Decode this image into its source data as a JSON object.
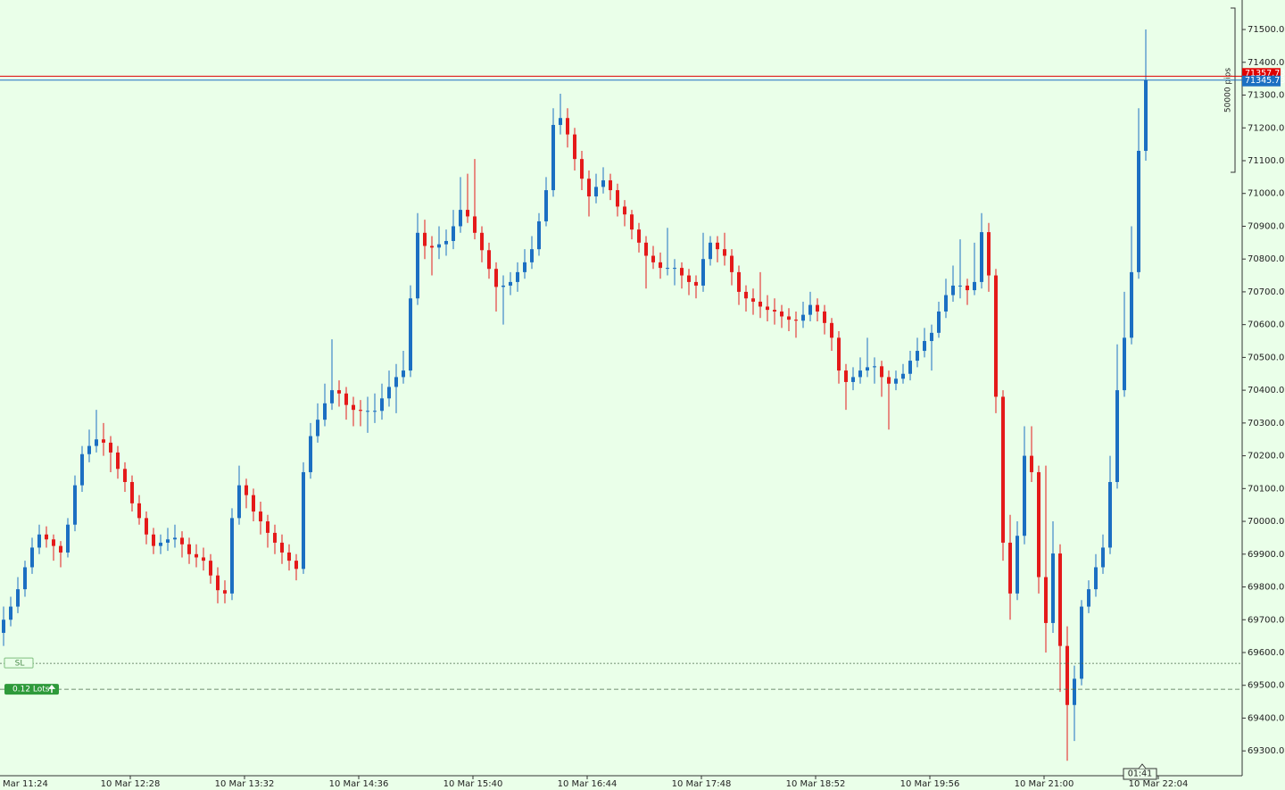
{
  "chart_data": {
    "type": "candlestick",
    "up_color": "#1c6fc2",
    "down_color": "#e41a1a",
    "ylim": [
      69227,
      71590
    ],
    "yticks": [
      {
        "value": 69300,
        "label": "69300.00"
      },
      {
        "value": 69400,
        "label": "69400.00"
      },
      {
        "value": 69500,
        "label": "69500.00"
      },
      {
        "value": 69600,
        "label": "69600.00"
      },
      {
        "value": 69700,
        "label": "69700.00"
      },
      {
        "value": 69800,
        "label": "69800.00"
      },
      {
        "value": 69900,
        "label": "69900.00"
      },
      {
        "value": 70000,
        "label": "70000.00"
      },
      {
        "value": 70100,
        "label": "70100.00"
      },
      {
        "value": 70200,
        "label": "70200.00"
      },
      {
        "value": 70300,
        "label": "70300.00"
      },
      {
        "value": 70400,
        "label": "70400.00"
      },
      {
        "value": 70500,
        "label": "70500.00"
      },
      {
        "value": 70600,
        "label": "70600.00"
      },
      {
        "value": 70700,
        "label": "70700.00"
      },
      {
        "value": 70800,
        "label": "70800.00"
      },
      {
        "value": 70900,
        "label": "70900.00"
      },
      {
        "value": 71000,
        "label": "71000.00"
      },
      {
        "value": 71100,
        "label": "71100.00"
      },
      {
        "value": 71200,
        "label": "71200.00"
      },
      {
        "value": 71300,
        "label": "71300.00"
      },
      {
        "value": 71400,
        "label": "71400.00"
      },
      {
        "value": 71500,
        "label": "71500.00"
      }
    ],
    "xticks": [
      "Mar 11:24",
      "10 Mar 12:28",
      "10 Mar 13:32",
      "10 Mar 14:36",
      "10 Mar 15:40",
      "10 Mar 16:44",
      "10 Mar 17:48",
      "10 Mar 18:52",
      "10 Mar 19:56",
      "10 Mar 21:00",
      "10 Mar 22:04"
    ],
    "ohlc": [
      [
        69660,
        69740,
        69620,
        69700
      ],
      [
        69700,
        69770,
        69680,
        69740
      ],
      [
        69740,
        69830,
        69720,
        69793
      ],
      [
        69793,
        69880,
        69770,
        69860
      ],
      [
        69860,
        69950,
        69840,
        69920
      ],
      [
        69920,
        69990,
        69900,
        69960
      ],
      [
        69960,
        69985,
        69920,
        69945
      ],
      [
        69945,
        69960,
        69880,
        69925
      ],
      [
        69925,
        69940,
        69860,
        69905
      ],
      [
        69905,
        70010,
        69890,
        69990
      ],
      [
        69990,
        70140,
        69970,
        70110
      ],
      [
        70110,
        70230,
        70090,
        70205
      ],
      [
        70205,
        70280,
        70180,
        70230
      ],
      [
        70230,
        70340,
        70210,
        70250
      ],
      [
        70250,
        70300,
        70200,
        70240
      ],
      [
        70240,
        70260,
        70150,
        70210
      ],
      [
        70210,
        70230,
        70130,
        70160
      ],
      [
        70160,
        70180,
        70090,
        70120
      ],
      [
        70120,
        70140,
        70030,
        70055
      ],
      [
        70055,
        70080,
        69990,
        70010
      ],
      [
        70010,
        70030,
        69930,
        69960
      ],
      [
        69960,
        69980,
        69900,
        69925
      ],
      [
        69925,
        69960,
        69900,
        69935
      ],
      [
        69935,
        69980,
        69910,
        69945
      ],
      [
        69945,
        69990,
        69920,
        69950
      ],
      [
        69950,
        69970,
        69890,
        69930
      ],
      [
        69930,
        69950,
        69870,
        69900
      ],
      [
        69900,
        69930,
        69860,
        69890
      ],
      [
        69890,
        69920,
        69850,
        69880
      ],
      [
        69880,
        69900,
        69810,
        69835
      ],
      [
        69835,
        69860,
        69750,
        69790
      ],
      [
        69790,
        69820,
        69750,
        69780
      ],
      [
        69780,
        70040,
        69760,
        70010
      ],
      [
        70010,
        70170,
        69990,
        70110
      ],
      [
        70110,
        70130,
        70040,
        70080
      ],
      [
        70080,
        70100,
        70000,
        70030
      ],
      [
        70030,
        70060,
        69960,
        70000
      ],
      [
        70000,
        70020,
        69920,
        69965
      ],
      [
        69965,
        69990,
        69900,
        69935
      ],
      [
        69935,
        69960,
        69870,
        69905
      ],
      [
        69905,
        69930,
        69850,
        69880
      ],
      [
        69880,
        69900,
        69820,
        69855
      ],
      [
        69855,
        70180,
        69840,
        70150
      ],
      [
        70150,
        70300,
        70130,
        70260
      ],
      [
        70260,
        70360,
        70240,
        70310
      ],
      [
        70310,
        70420,
        70290,
        70360
      ],
      [
        70360,
        70555,
        70340,
        70400
      ],
      [
        70400,
        70430,
        70350,
        70390
      ],
      [
        70390,
        70410,
        70310,
        70355
      ],
      [
        70355,
        70380,
        70290,
        70340
      ],
      [
        70340,
        70370,
        70290,
        70337
      ],
      [
        70337,
        70380,
        70270,
        70337
      ],
      [
        70337,
        70390,
        70300,
        70337
      ],
      [
        70337,
        70420,
        70310,
        70375
      ],
      [
        70375,
        70460,
        70350,
        70410
      ],
      [
        70410,
        70480,
        70330,
        70440
      ],
      [
        70440,
        70520,
        70420,
        70460
      ],
      [
        70460,
        70720,
        70440,
        70680
      ],
      [
        70680,
        70940,
        70660,
        70880
      ],
      [
        70880,
        70920,
        70800,
        70840
      ],
      [
        70840,
        70870,
        70750,
        70835
      ],
      [
        70835,
        70900,
        70800,
        70845
      ],
      [
        70845,
        70890,
        70810,
        70855
      ],
      [
        70855,
        70950,
        70830,
        70900
      ],
      [
        70900,
        71050,
        70880,
        70950
      ],
      [
        70950,
        71060,
        70910,
        70930
      ],
      [
        70930,
        71105,
        70860,
        70880
      ],
      [
        70880,
        70900,
        70790,
        70827
      ],
      [
        70827,
        70850,
        70740,
        70770
      ],
      [
        70770,
        70790,
        70640,
        70715
      ],
      [
        70715,
        70750,
        70600,
        70719
      ],
      [
        70719,
        70760,
        70690,
        70730
      ],
      [
        70730,
        70790,
        70700,
        70760
      ],
      [
        70760,
        70830,
        70740,
        70790
      ],
      [
        70790,
        70870,
        70770,
        70830
      ],
      [
        70830,
        70940,
        70810,
        70915
      ],
      [
        70915,
        71050,
        70900,
        71010
      ],
      [
        71010,
        71260,
        70990,
        71209
      ],
      [
        71209,
        71304,
        71180,
        71230
      ],
      [
        71230,
        71260,
        71140,
        71180
      ],
      [
        71180,
        71200,
        71070,
        71105
      ],
      [
        71105,
        71130,
        71010,
        71045
      ],
      [
        71045,
        71070,
        70930,
        70991
      ],
      [
        70991,
        71060,
        70970,
        71020
      ],
      [
        71020,
        71080,
        71000,
        71040
      ],
      [
        71040,
        71060,
        70980,
        71010
      ],
      [
        71010,
        71030,
        70930,
        70960
      ],
      [
        70960,
        70980,
        70900,
        70936
      ],
      [
        70936,
        70950,
        70860,
        70890
      ],
      [
        70890,
        70910,
        70820,
        70850
      ],
      [
        70850,
        70870,
        70710,
        70810
      ],
      [
        70810,
        70840,
        70770,
        70790
      ],
      [
        70790,
        70820,
        70740,
        70773
      ],
      [
        70773,
        70895,
        70750,
        70773
      ],
      [
        70773,
        70800,
        70720,
        70773
      ],
      [
        70773,
        70790,
        70710,
        70750
      ],
      [
        70750,
        70770,
        70690,
        70730
      ],
      [
        70730,
        70750,
        70680,
        70719
      ],
      [
        70719,
        70880,
        70700,
        70800
      ],
      [
        70800,
        70870,
        70780,
        70850
      ],
      [
        70850,
        70870,
        70790,
        70830
      ],
      [
        70830,
        70880,
        70780,
        70810
      ],
      [
        70810,
        70830,
        70720,
        70760
      ],
      [
        70760,
        70780,
        70660,
        70700
      ],
      [
        70700,
        70720,
        70640,
        70680
      ],
      [
        70680,
        70710,
        70630,
        70670
      ],
      [
        70670,
        70760,
        70620,
        70655
      ],
      [
        70655,
        70690,
        70610,
        70645
      ],
      [
        70645,
        70680,
        70600,
        70640
      ],
      [
        70640,
        70660,
        70590,
        70625
      ],
      [
        70625,
        70650,
        70580,
        70615
      ],
      [
        70615,
        70640,
        70560,
        70612
      ],
      [
        70612,
        70670,
        70590,
        70630
      ],
      [
        70630,
        70700,
        70610,
        70660
      ],
      [
        70660,
        70680,
        70610,
        70640
      ],
      [
        70640,
        70660,
        70570,
        70605
      ],
      [
        70605,
        70620,
        70520,
        70560
      ],
      [
        70560,
        70580,
        70420,
        70460
      ],
      [
        70460,
        70480,
        70340,
        70425
      ],
      [
        70425,
        70470,
        70400,
        70440
      ],
      [
        70440,
        70500,
        70420,
        70460
      ],
      [
        70460,
        70560,
        70440,
        70470
      ],
      [
        70470,
        70500,
        70420,
        70473
      ],
      [
        70473,
        70490,
        70380,
        70440
      ],
      [
        70440,
        70460,
        70280,
        70420
      ],
      [
        70420,
        70460,
        70400,
        70435
      ],
      [
        70435,
        70480,
        70420,
        70450
      ],
      [
        70450,
        70520,
        70430,
        70490
      ],
      [
        70490,
        70560,
        70470,
        70520
      ],
      [
        70520,
        70590,
        70500,
        70550
      ],
      [
        70550,
        70600,
        70460,
        70575
      ],
      [
        70575,
        70670,
        70560,
        70640
      ],
      [
        70640,
        70740,
        70620,
        70690
      ],
      [
        70690,
        70780,
        70670,
        70719
      ],
      [
        70719,
        70860,
        70680,
        70719
      ],
      [
        70719,
        70740,
        70660,
        70705
      ],
      [
        70705,
        70850,
        70690,
        70730
      ],
      [
        70730,
        70940,
        70710,
        70882
      ],
      [
        70882,
        70910,
        70700,
        70750
      ],
      [
        70750,
        70770,
        70330,
        70380
      ],
      [
        70380,
        70400,
        69880,
        69935
      ],
      [
        69935,
        70020,
        69700,
        69780
      ],
      [
        69780,
        70000,
        69760,
        69956
      ],
      [
        69956,
        70290,
        69930,
        70200
      ],
      [
        70200,
        70290,
        70120,
        70150
      ],
      [
        70150,
        70170,
        69780,
        69830
      ],
      [
        69830,
        70170,
        69600,
        69690
      ],
      [
        69690,
        70000,
        69660,
        69902
      ],
      [
        69902,
        69930,
        69480,
        69620
      ],
      [
        69620,
        69680,
        69270,
        69440
      ],
      [
        69440,
        69560,
        69330,
        69520
      ],
      [
        69520,
        69760,
        69500,
        69740
      ],
      [
        69740,
        69820,
        69720,
        69793
      ],
      [
        69793,
        69900,
        69770,
        69860
      ],
      [
        69860,
        69960,
        69840,
        69920
      ],
      [
        69920,
        70200,
        69900,
        70120
      ],
      [
        70120,
        70540,
        70100,
        70400
      ],
      [
        70400,
        70700,
        70380,
        70560
      ],
      [
        70560,
        70900,
        70540,
        70760
      ],
      [
        70760,
        71260,
        70740,
        71130
      ],
      [
        71130,
        71500,
        71100,
        71345.73
      ]
    ],
    "price_lines": [
      {
        "value": 71357.73,
        "label": "71357.73",
        "color": "#e00000"
      },
      {
        "value": 71345.73,
        "label": "71345.73",
        "color": "#1c6fc2"
      }
    ],
    "order_lines": [
      {
        "value": 69567,
        "label": "SL"
      },
      {
        "value": 69488,
        "label": "0.12 Lots"
      }
    ],
    "ruler_label": "50000 pips",
    "timer": "01:41"
  }
}
